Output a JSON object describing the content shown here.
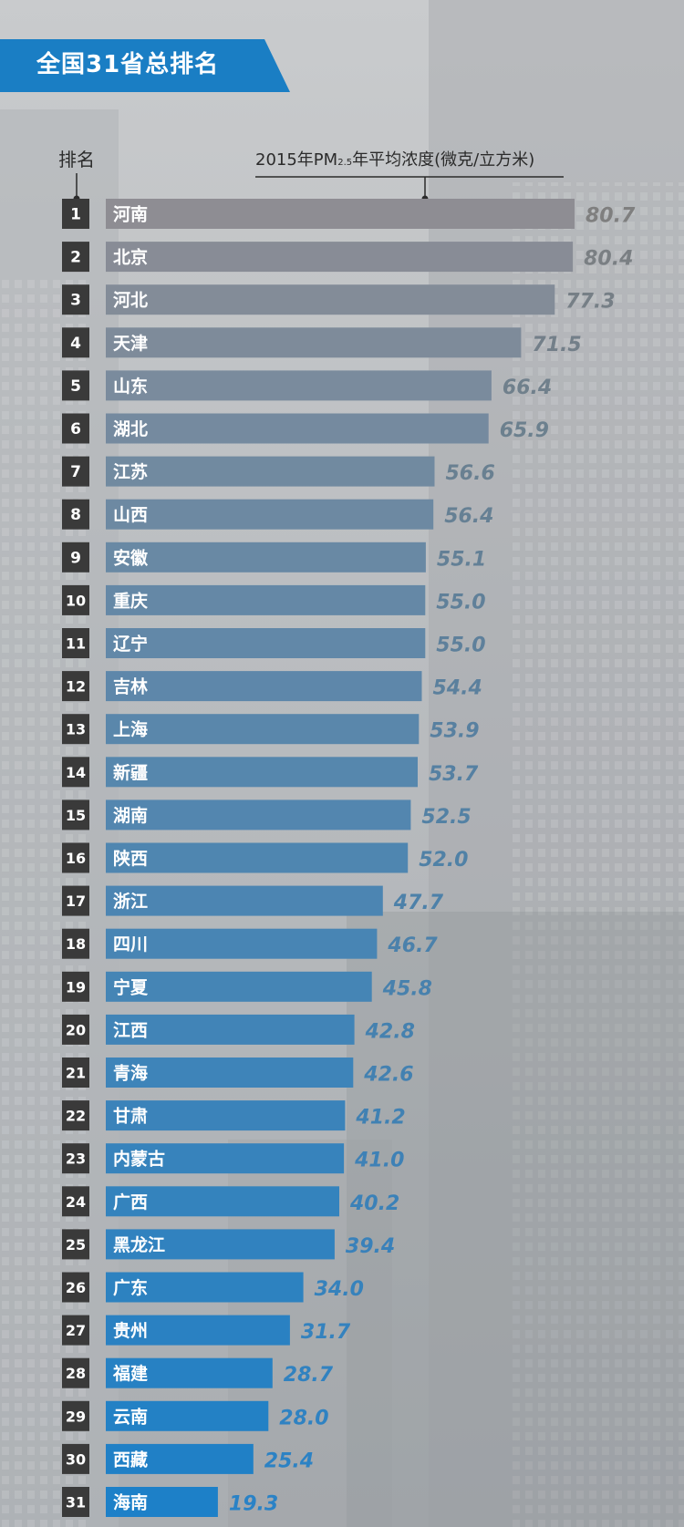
{
  "header": {
    "title": "全国31省总排名",
    "rank_label": "排名",
    "unit_prefix": "2015年PM",
    "unit_sub": "2.5",
    "unit_suffix": "年平均浓度(微克/立方米)"
  },
  "colors": {
    "title_tab": "#1a7ec4",
    "rank_box": "#3a3a3a",
    "bar_top": "#8e8d93",
    "bar_bottom": "#1d80c8",
    "value_top": "#7f7f7f",
    "value_bottom": "#2a82c6"
  },
  "chart_data": {
    "type": "bar",
    "orientation": "horizontal",
    "title": "全国31省总排名",
    "xlabel": "2015年PM2.5年平均浓度(微克/立方米)",
    "ylabel": "排名",
    "xlim": [
      0,
      80.7
    ],
    "grid": false,
    "legend": "none",
    "ranks": [
      "1",
      "2",
      "3",
      "4",
      "5",
      "6",
      "7",
      "8",
      "9",
      "10",
      "11",
      "12",
      "13",
      "14",
      "15",
      "16",
      "17",
      "18",
      "19",
      "20",
      "21",
      "22",
      "23",
      "24",
      "25",
      "26",
      "27",
      "28",
      "29",
      "30",
      "31"
    ],
    "categories": [
      "河南",
      "北京",
      "河北",
      "天津",
      "山东",
      "湖北",
      "江苏",
      "山西",
      "安徽",
      "重庆",
      "辽宁",
      "吉林",
      "上海",
      "新疆",
      "湖南",
      "陕西",
      "浙江",
      "四川",
      "宁夏",
      "江西",
      "青海",
      "甘肃",
      "内蒙古",
      "广西",
      "黑龙江",
      "广东",
      "贵州",
      "福建",
      "云南",
      "西藏",
      "海南"
    ],
    "values": [
      80.7,
      80.4,
      77.3,
      71.5,
      66.4,
      65.9,
      56.6,
      56.4,
      55.1,
      55.0,
      55.0,
      54.4,
      53.9,
      53.7,
      52.5,
      52.0,
      47.7,
      46.7,
      45.8,
      42.8,
      42.6,
      41.2,
      41.0,
      40.2,
      39.4,
      34.0,
      31.7,
      28.7,
      28.0,
      25.4,
      19.3
    ],
    "value_labels": [
      "80.7",
      "80.4",
      "77.3",
      "71.5",
      "66.4",
      "65.9",
      "56.6",
      "56.4",
      "55.1",
      "55.0",
      "55.0",
      "54.4",
      "53.9",
      "53.7",
      "52.5",
      "52.0",
      "47.7",
      "46.7",
      "45.8",
      "42.8",
      "42.6",
      "41.2",
      "41.0",
      "40.2",
      "39.4",
      "34.0",
      "31.7",
      "28.7",
      "28.0",
      "25.4",
      "19.3"
    ]
  }
}
